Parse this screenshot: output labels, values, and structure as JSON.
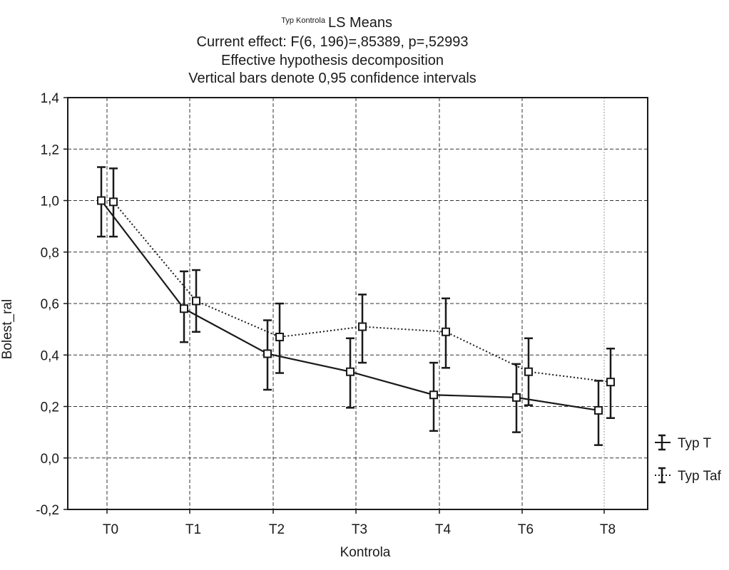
{
  "chart_data": {
    "type": "line",
    "title_prefix": "Typ Kontrola",
    "title": "LS Means",
    "subtitle_lines": [
      "Current effect: F(6, 196)=,85389, p=,52993",
      "Effective hypothesis decomposition",
      "Vertical bars denote 0,95 confidence intervals"
    ],
    "xlabel": "Kontrola",
    "ylabel": "Bolest_ral",
    "categories": [
      "T0",
      "T1",
      "T2",
      "T3",
      "T4",
      "T6",
      "T8"
    ],
    "ylim": [
      -0.2,
      1.4
    ],
    "yticks": [
      -0.2,
      0.0,
      0.2,
      0.4,
      0.6,
      0.8,
      1.0,
      1.2,
      1.4
    ],
    "ytick_labels": [
      "-0,2",
      "0,0",
      "0,2",
      "0,4",
      "0,6",
      "0,8",
      "1,0",
      "1,2",
      "1,4"
    ],
    "grid": true,
    "legend_position": "right",
    "series": [
      {
        "name": "Typ T",
        "line_style": "solid",
        "values": [
          1.0,
          0.58,
          0.405,
          0.335,
          0.245,
          0.235,
          0.185
        ],
        "ci_lower": [
          0.86,
          0.45,
          0.265,
          0.195,
          0.105,
          0.1,
          0.05
        ],
        "ci_upper": [
          1.13,
          0.725,
          0.535,
          0.465,
          0.37,
          0.365,
          0.3
        ]
      },
      {
        "name": "Typ Taf",
        "line_style": "dotted",
        "values": [
          0.995,
          0.61,
          0.47,
          0.51,
          0.49,
          0.335,
          0.295
        ],
        "ci_lower": [
          0.86,
          0.49,
          0.33,
          0.37,
          0.35,
          0.205,
          0.155
        ],
        "ci_upper": [
          1.125,
          0.73,
          0.6,
          0.635,
          0.62,
          0.465,
          0.425
        ]
      }
    ]
  }
}
